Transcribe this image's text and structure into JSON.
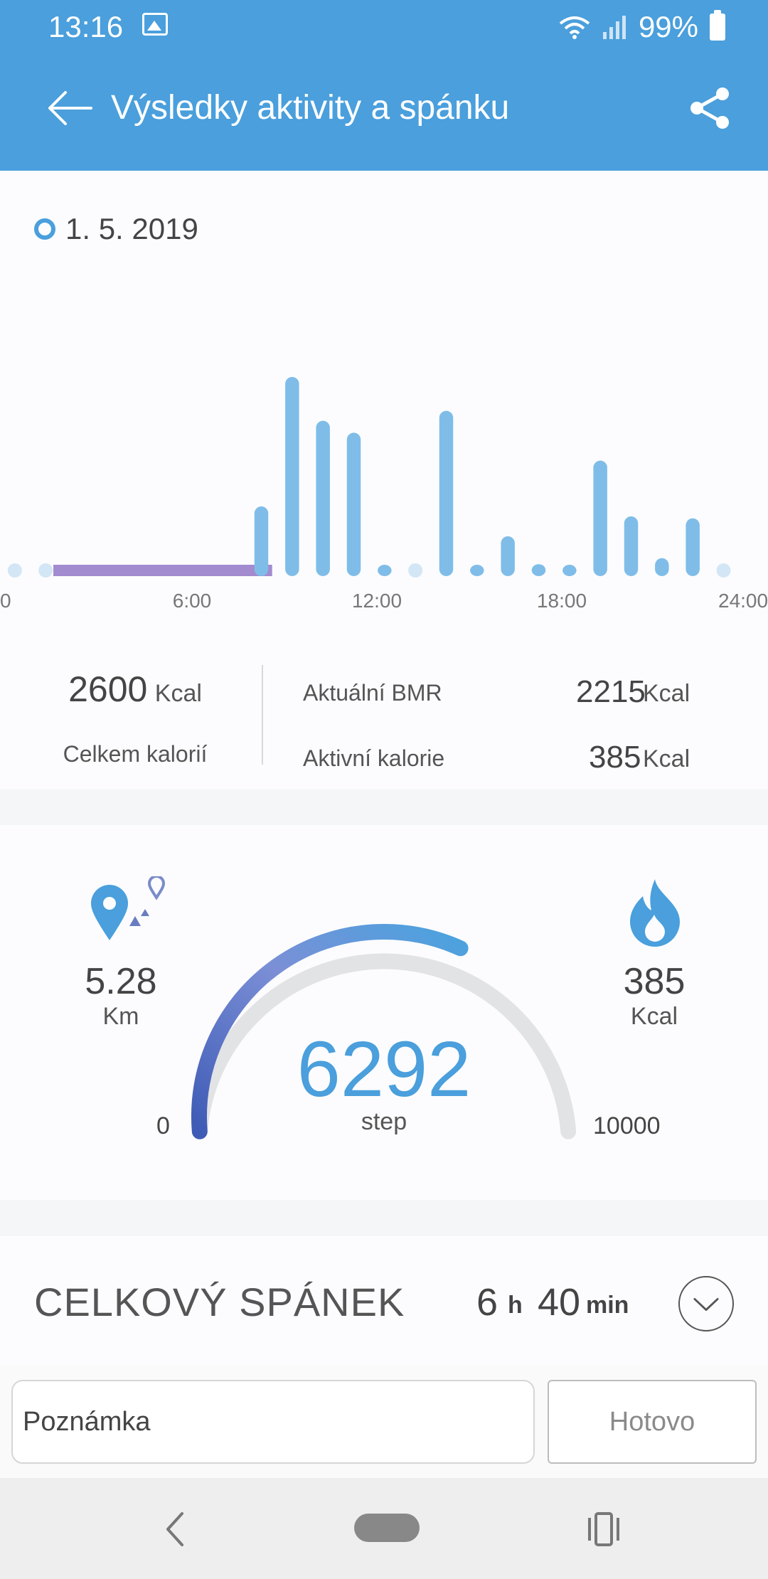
{
  "status_bar": {
    "time": "13:16",
    "battery": "99%"
  },
  "app_bar": {
    "title": "Výsledky aktivity a spánku"
  },
  "date": "1. 5. 2019",
  "chart_data": {
    "type": "bar",
    "x_ticks": [
      "0",
      "6:00",
      "12:00",
      "18:00",
      "24:00"
    ],
    "xlim": [
      0,
      24
    ],
    "ylim": [
      0,
      1
    ],
    "bar_hour_width": 0.45,
    "bars": [
      {
        "hour": 0.25,
        "value": 0.0
      },
      {
        "hour": 1.25,
        "value": 0.0
      },
      {
        "hour": 8.25,
        "value": 0.35
      },
      {
        "hour": 9.25,
        "value": 1.0
      },
      {
        "hour": 10.25,
        "value": 0.78
      },
      {
        "hour": 11.25,
        "value": 0.72
      },
      {
        "hour": 12.25,
        "value": 0.05
      },
      {
        "hour": 13.25,
        "value": 0.0
      },
      {
        "hour": 14.25,
        "value": 0.83
      },
      {
        "hour": 15.25,
        "value": 0.05
      },
      {
        "hour": 16.25,
        "value": 0.2
      },
      {
        "hour": 17.25,
        "value": 0.06
      },
      {
        "hour": 18.25,
        "value": 0.05
      },
      {
        "hour": 19.25,
        "value": 0.58
      },
      {
        "hour": 20.25,
        "value": 0.3
      },
      {
        "hour": 21.25,
        "value": 0.09
      },
      {
        "hour": 22.25,
        "value": 0.29
      },
      {
        "hour": 23.25,
        "value": 0.0
      }
    ],
    "sleep_range": [
      1.5,
      8.6
    ],
    "colors": {
      "bar": "#7fbde8",
      "bar_zero": "#d3e6f5",
      "sleep": "#a38bd0"
    }
  },
  "calories": {
    "total_value": "2600",
    "total_unit": "Kcal",
    "total_label": "Celkem kalorií",
    "bmr_label": "Aktuální BMR",
    "bmr_value": "2215",
    "bmr_unit": "Kcal",
    "active_label": "Aktivní kalorie",
    "active_value": "385",
    "active_unit": "Kcal"
  },
  "steps": {
    "distance_value": "5.28",
    "distance_unit": "Km",
    "burn_value": "385",
    "burn_unit": "Kcal",
    "count": "6292",
    "unit": "step",
    "goal_min": "0",
    "goal_max": "10000",
    "progress": 0.6292,
    "colors": {
      "start": "#3e5bb5",
      "end": "#4aa3df",
      "track": "#e2e3e5"
    }
  },
  "sleep": {
    "title": "CELKOVÝ SPÁNEK",
    "hours": "6",
    "hours_unit": "h",
    "minutes": "40",
    "minutes_unit": "min"
  },
  "note": {
    "placeholder": "Poznámka",
    "done_label": "Hotovo"
  }
}
